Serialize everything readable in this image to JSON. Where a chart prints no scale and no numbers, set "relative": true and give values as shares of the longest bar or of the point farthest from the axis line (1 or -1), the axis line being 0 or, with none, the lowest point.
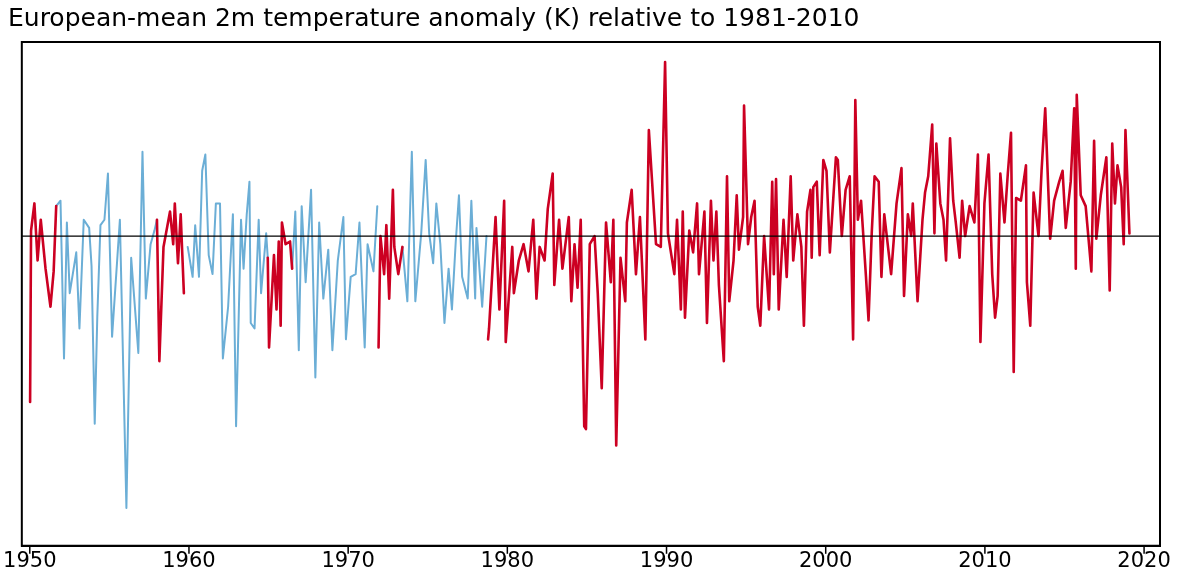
{
  "chart_data": {
    "type": "line",
    "title": "European-mean 2m temperature anomaly (K) relative to 1981-2010",
    "relative": true,
    "legend": false,
    "grid": false,
    "marker": "none",
    "line_style": "solid",
    "xlim": [
      1949.5,
      2021
    ],
    "xticks": [
      1950,
      1960,
      1970,
      1980,
      1990,
      2000,
      2010,
      2020
    ],
    "ref_lines": [
      {
        "axis": "y",
        "value": 0,
        "color": "#000000"
      }
    ],
    "series": [
      {
        "color": "#6baed6",
        "x": [
          1951.66,
          1951.93,
          1952.15,
          1952.33,
          1952.51,
          1952.92,
          1953.12,
          1953.39,
          1953.73,
          1953.88,
          1954.08,
          1954.24,
          1954.44,
          1954.69,
          1954.91,
          1955.17,
          1955.66,
          1956.07,
          1956.37,
          1956.82,
          1957.08,
          1957.29,
          1957.59,
          1957.83,
          1957.99,
          1958.8,
          1959.68,
          1959.92,
          1960.23,
          1960.39,
          1960.63,
          1960.83,
          1961.03,
          1961.24,
          1961.48,
          1961.69,
          1961.95,
          1962.13,
          1962.46,
          1962.76,
          1962.96,
          1963.27,
          1963.43,
          1963.63,
          1963.8,
          1963.88,
          1964.12,
          1964.38,
          1964.53,
          1964.85,
          1964.95,
          1965.7,
          1966.48,
          1966.68,
          1966.9,
          1967.08,
          1967.33,
          1967.67,
          1967.94,
          1968.18,
          1968.44,
          1968.75,
          1969.01,
          1969.35,
          1969.7,
          1969.86,
          1970.16,
          1970.47,
          1970.71,
          1971.04,
          1971.22,
          1971.59,
          1971.83,
          1971.91,
          1972.6,
          1973.41,
          1973.72,
          1974.0,
          1974.22,
          1974.59,
          1974.87,
          1975.09,
          1975.34,
          1975.54,
          1975.79,
          1976.05,
          1976.31,
          1976.52,
          1976.76,
          1976.96,
          1977.16,
          1977.51,
          1977.74,
          1977.98,
          1978.06,
          1978.42,
          1978.69
        ],
        "values": [
          0.11,
          0.13,
          -0.45,
          0.05,
          -0.21,
          -0.06,
          -0.34,
          0.06,
          0.03,
          -0.11,
          -0.69,
          -0.3,
          0.04,
          0.06,
          0.23,
          -0.37,
          0.06,
          -1,
          -0.08,
          -0.43,
          0.31,
          -0.23,
          -0.03,
          0.02,
          0.06,
          null,
          null,
          -0.04,
          -0.15,
          0.04,
          -0.15,
          0.24,
          0.3,
          -0.07,
          -0.14,
          0.12,
          0.12,
          -0.45,
          -0.26,
          0.08,
          -0.7,
          0.06,
          -0.12,
          0.08,
          0.2,
          -0.32,
          -0.34,
          0.06,
          -0.21,
          0.01,
          -0.08,
          null,
          -0.12,
          0.09,
          -0.42,
          0.11,
          -0.17,
          0.17,
          -0.52,
          0.05,
          -0.23,
          -0.05,
          -0.42,
          -0.09,
          0.07,
          -0.38,
          -0.15,
          -0.14,
          0.05,
          -0.41,
          -0.03,
          -0.13,
          0.11,
          null,
          null,
          -0.04,
          -0.24,
          0.31,
          -0.24,
          0.01,
          0.28,
          0.01,
          -0.1,
          0.12,
          -0.03,
          -0.32,
          -0.12,
          -0.27,
          -0.02,
          0.15,
          -0.15,
          -0.23,
          0.13,
          -0.23,
          0.03,
          -0.26,
          0.0
        ]
      },
      {
        "color": "#cc0022",
        "x": [
          1950.02,
          1950.08,
          1950.29,
          1950.49,
          1950.69,
          1950.99,
          1951.3,
          1951.5,
          1951.66,
          1954,
          1957.99,
          1958.14,
          1958.4,
          1958.81,
          1959.01,
          1959.11,
          1959.31,
          1959.48,
          1959.68,
          1962,
          1964.95,
          1965.03,
          1965.34,
          1965.5,
          1965.64,
          1965.76,
          1965.84,
          1966.07,
          1966.35,
          1966.48,
          1969,
          1971.91,
          1972.03,
          1972.26,
          1972.4,
          1972.58,
          1972.81,
          1972.9,
          1973.15,
          1973.41,
          1976,
          1978.79,
          1978.85,
          1979.26,
          1979.5,
          1979.8,
          1979.9,
          1980.31,
          1980.41,
          1980.72,
          1981.02,
          1981.33,
          1981.63,
          1981.83,
          1982.03,
          1982.34,
          1982.54,
          1982.85,
          1982.95,
          1983.25,
          1983.46,
          1983.86,
          1984.02,
          1984.22,
          1984.41,
          1984.61,
          1984.83,
          1984.94,
          1985.18,
          1985.48,
          1985.68,
          1985.93,
          1986.2,
          1986.5,
          1986.66,
          1986.84,
          1987.11,
          1987.41,
          1987.51,
          1987.81,
          1988.08,
          1988.33,
          1988.67,
          1988.89,
          1989.34,
          1989.64,
          1989.91,
          1990.09,
          1990.49,
          1990.66,
          1990.9,
          1991.02,
          1991.16,
          1991.43,
          1991.67,
          1991.92,
          1992.04,
          1992.38,
          1992.54,
          1992.79,
          1992.95,
          1993.13,
          1993.29,
          1993.6,
          1993.8,
          1993.94,
          1994.21,
          1994.41,
          1994.55,
          1994.81,
          1994.87,
          1995.12,
          1995.32,
          1995.53,
          1995.73,
          1995.89,
          1996.13,
          1996.44,
          1996.64,
          1996.74,
          1996.88,
          1997.05,
          1997.35,
          1997.55,
          1997.8,
          1997.96,
          1998.22,
          1998.47,
          1998.63,
          1998.83,
          1999.04,
          1999.12,
          1999.22,
          1999.44,
          1999.62,
          1999.85,
          2000.05,
          2000.26,
          2000.64,
          2000.76,
          2001.01,
          2001.25,
          2001.51,
          2001.72,
          2001.86,
          2002.02,
          2002.22,
          2002.53,
          2002.69,
          2002.89,
          2003.07,
          2003.33,
          2003.5,
          2003.68,
          2004.11,
          2004.45,
          2004.76,
          2004.92,
          2005.16,
          2005.37,
          2005.47,
          2005.77,
          2006.08,
          2006.24,
          2006.44,
          2006.69,
          2006.83,
          2006.95,
          2007.2,
          2007.4,
          2007.56,
          2007.81,
          2008.01,
          2008.17,
          2008.41,
          2008.57,
          2008.76,
          2009.04,
          2009.34,
          2009.56,
          2009.72,
          2009.97,
          2010.23,
          2010.46,
          2010.64,
          2010.8,
          2010.97,
          2011.23,
          2011.44,
          2011.64,
          2011.81,
          2011.96,
          2012.26,
          2012.58,
          2012.64,
          2012.85,
          2013.06,
          2013.37,
          2013.56,
          2013.79,
          2014.1,
          2014.35,
          2014.67,
          2014.88,
          2015.08,
          2015.39,
          2015.61,
          2015.71,
          2015.77,
          2016.02,
          2016.33,
          2016.54,
          2016.69,
          2016.86,
          2017.0,
          2017.28,
          2017.63,
          2017.84,
          2018.0,
          2018.17,
          2018.33,
          2018.56,
          2018.72,
          2018.83,
          2019.08
        ],
        "values": [
          -0.61,
          0.02,
          0.12,
          -0.09,
          0.06,
          -0.12,
          -0.26,
          -0.13,
          0.11,
          null,
          0.06,
          -0.46,
          -0.04,
          0.09,
          -0.03,
          0.12,
          -0.1,
          0.08,
          -0.21,
          null,
          -0.08,
          -0.41,
          -0.07,
          -0.27,
          -0.02,
          -0.33,
          0.05,
          -0.03,
          -0.02,
          -0.12,
          null,
          -0.41,
          0.0,
          -0.14,
          0.04,
          -0.23,
          0.17,
          -0.04,
          -0.14,
          -0.04,
          null,
          -0.38,
          -0.34,
          0.07,
          -0.27,
          0.13,
          -0.39,
          -0.04,
          -0.21,
          -0.09,
          -0.03,
          -0.13,
          0.06,
          -0.23,
          -0.04,
          -0.09,
          0.1,
          0.23,
          -0.18,
          0.06,
          -0.12,
          0.07,
          -0.24,
          -0.03,
          -0.19,
          0.06,
          -0.7,
          -0.71,
          -0.03,
          0.0,
          -0.21,
          -0.56,
          0.05,
          -0.17,
          0.06,
          -0.77,
          -0.08,
          -0.24,
          0.05,
          0.17,
          -0.14,
          0.07,
          -0.38,
          0.39,
          -0.03,
          -0.04,
          0.64,
          0.01,
          -0.14,
          0.06,
          -0.27,
          0.09,
          -0.3,
          0.02,
          -0.06,
          0.12,
          -0.14,
          0.09,
          -0.32,
          0.13,
          -0.09,
          0.09,
          -0.18,
          -0.46,
          0.22,
          -0.24,
          -0.09,
          0.15,
          -0.05,
          0.07,
          0.48,
          -0.03,
          0.07,
          0.13,
          -0.26,
          -0.33,
          0.0,
          -0.27,
          0.2,
          -0.14,
          0.21,
          -0.27,
          0.06,
          -0.15,
          0.22,
          -0.09,
          0.08,
          -0.04,
          -0.33,
          0.09,
          0.17,
          -0.08,
          0.18,
          0.2,
          -0.07,
          0.28,
          0.24,
          -0.06,
          0.29,
          0.28,
          0.0,
          0.17,
          0.22,
          -0.38,
          0.5,
          0.06,
          0.13,
          -0.15,
          -0.31,
          0.01,
          0.22,
          0.2,
          -0.15,
          0.08,
          -0.14,
          0.12,
          0.25,
          -0.22,
          0.08,
          0.0,
          0.12,
          -0.24,
          0.06,
          0.16,
          0.22,
          0.41,
          0.01,
          0.34,
          0.12,
          0.06,
          -0.09,
          0.36,
          0.13,
          0.05,
          -0.08,
          0.13,
          0.0,
          0.11,
          0.05,
          0.3,
          -0.39,
          0.12,
          0.3,
          -0.14,
          -0.3,
          -0.22,
          0.23,
          0.05,
          0.23,
          0.38,
          -0.5,
          0.14,
          0.13,
          0.26,
          -0.17,
          -0.33,
          0.16,
          0.0,
          0.24,
          0.47,
          -0.01,
          0.13,
          0.2,
          0.24,
          0.03,
          0.2,
          0.47,
          -0.12,
          0.52,
          0.15,
          0.11,
          -0.03,
          -0.13,
          0.35,
          -0.01,
          0.15,
          0.29,
          -0.2,
          0.34,
          0.12,
          0.26,
          0.18,
          -0.03,
          0.39,
          0.01
        ]
      }
    ]
  }
}
